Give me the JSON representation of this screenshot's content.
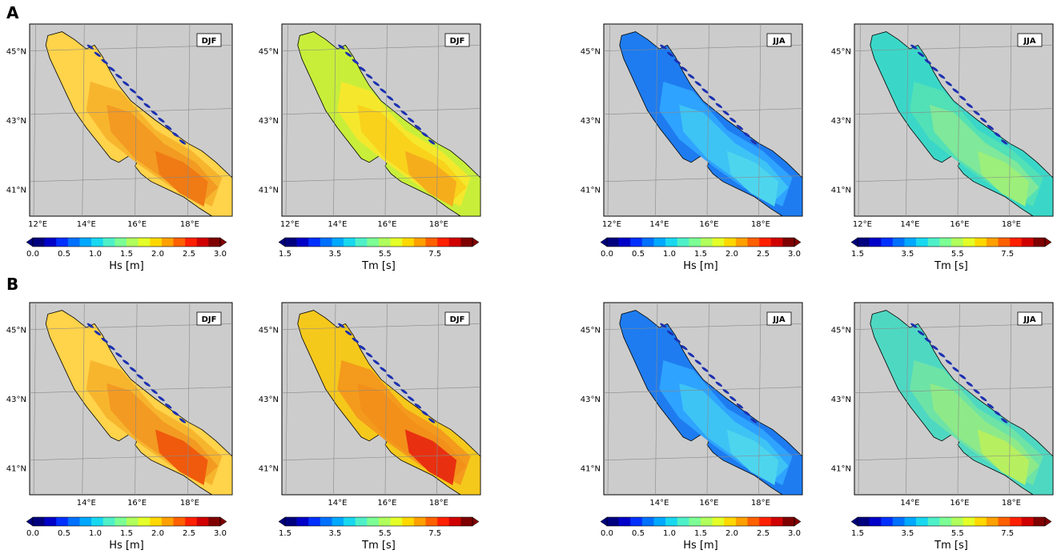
{
  "rows": [
    {
      "label": "A",
      "panels": [
        {
          "season": "DJF",
          "variable": "Hs",
          "lon_ticks": [
            "12°E",
            "14°E",
            "16°E",
            "18°E"
          ],
          "lat_ticks": [
            "45°N",
            "43°N",
            "41°N"
          ],
          "palette": [
            "#ffd34a",
            "#f7b52e",
            "#f39a22",
            "#f07a14"
          ]
        },
        {
          "season": "DJF",
          "variable": "Tm",
          "lon_ticks": [
            "12°E",
            "14°E",
            "16°E",
            "18°E"
          ],
          "lat_ticks": [
            "45°N",
            "43°N",
            "41°N"
          ],
          "palette": [
            "#c8ee3a",
            "#f5e82c",
            "#f9d21c",
            "#f6ad1c"
          ]
        },
        {
          "season": "JJA",
          "variable": "Hs",
          "lon_ticks": [
            "12°E",
            "14°E",
            "16°E",
            "18°E"
          ],
          "lat_ticks": [
            "45°N",
            "43°N",
            "41°N"
          ],
          "palette": [
            "#1e7cf0",
            "#2ea3ff",
            "#3ec3f5",
            "#4ed5ee"
          ]
        },
        {
          "season": "JJA",
          "variable": "Tm",
          "lon_ticks": [
            "12°E",
            "14°E",
            "16°E",
            "18°E"
          ],
          "lat_ticks": [
            "45°N",
            "43°N",
            "41°N"
          ],
          "palette": [
            "#3ad7c8",
            "#52e0b6",
            "#7fe89a",
            "#9cef7a"
          ]
        }
      ]
    },
    {
      "label": "B",
      "panels": [
        {
          "season": "DJF",
          "variable": "Hs",
          "lon_ticks": [
            "",
            "14°E",
            "16°E",
            "18°E"
          ],
          "lat_ticks": [
            "45°N",
            "43°N",
            "41°N"
          ],
          "palette": [
            "#ffd34a",
            "#f7b52e",
            "#f39a22",
            "#f05a0c"
          ]
        },
        {
          "season": "DJF",
          "variable": "Tm",
          "lon_ticks": [
            "",
            "14°E",
            "16°E",
            "18°E"
          ],
          "lat_ticks": [
            "45°N",
            "43°N",
            "41°N"
          ],
          "palette": [
            "#f5c81c",
            "#f49a1c",
            "#f2901a",
            "#e83010"
          ]
        },
        {
          "season": "JJA",
          "variable": "Hs",
          "lon_ticks": [
            "",
            "14°E",
            "16°E",
            "18°E"
          ],
          "lat_ticks": [
            "45°N",
            "43°N",
            "41°N"
          ],
          "palette": [
            "#1e7cf0",
            "#2ea3ff",
            "#3ec3f5",
            "#4ed5ee"
          ]
        },
        {
          "season": "JJA",
          "variable": "Tm",
          "lon_ticks": [
            "",
            "14°E",
            "16°E",
            "18°E"
          ],
          "lat_ticks": [
            "45°N",
            "43°N",
            "41°N"
          ],
          "palette": [
            "#4ed8c2",
            "#6ee3a6",
            "#8eea88",
            "#b6f060"
          ]
        }
      ]
    }
  ],
  "colorbars": {
    "Hs": {
      "label": "Hs [m]",
      "ticks": [
        "0.0",
        "0.5",
        "1.0",
        "1.5",
        "2.0",
        "2.5",
        "3.0"
      ]
    },
    "Tm": {
      "label": "Tm [s]",
      "ticks": [
        "1.5",
        "3.5",
        "5.5",
        "7.5"
      ]
    }
  },
  "colors": {
    "land": "#cccccc",
    "coastline": "#000000",
    "gridline": "#888888",
    "jet": [
      "#00007f",
      "#0000c8",
      "#0030ff",
      "#0070ff",
      "#00a8ff",
      "#18d8f0",
      "#4ef0c8",
      "#7cff94",
      "#b0ff5c",
      "#e4ff28",
      "#ffd800",
      "#ffa000",
      "#ff6000",
      "#ff2000",
      "#d00000",
      "#7f0000"
    ]
  }
}
